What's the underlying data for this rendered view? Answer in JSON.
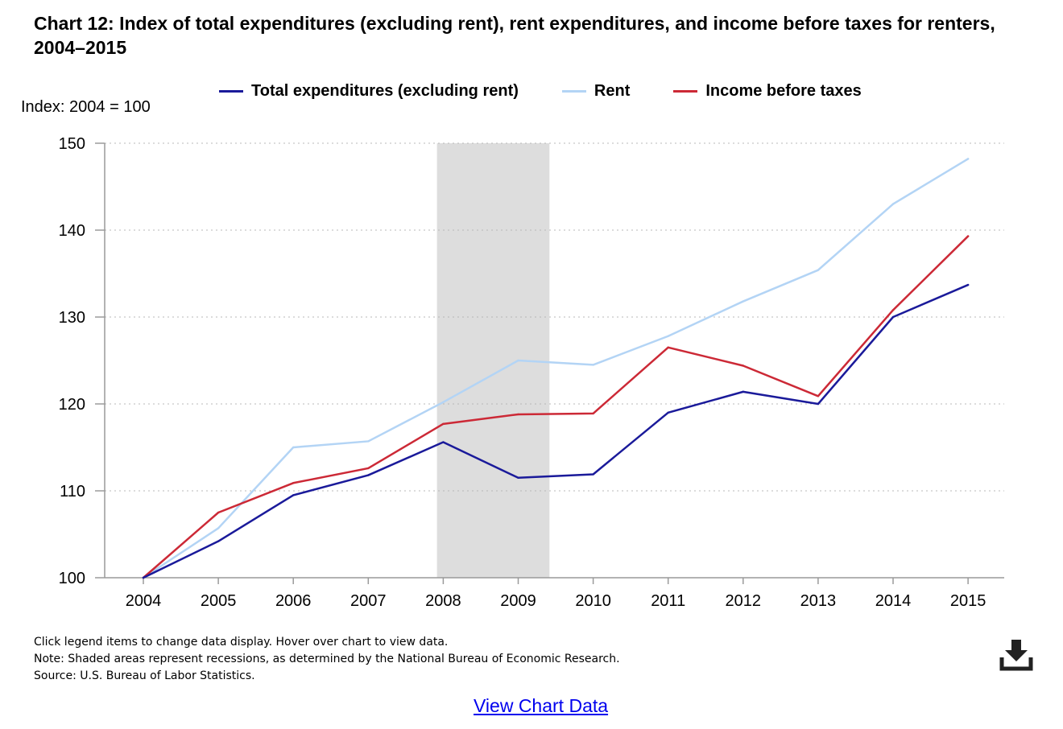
{
  "title": "Chart 12: Index of total expenditures (excluding rent), rent expenditures, and income before taxes for renters, 2004–2015",
  "y_unit_label": "Index: 2004 = 100",
  "legend": [
    {
      "label": "Total expenditures (excluding rent)",
      "color": "#1a1a9a"
    },
    {
      "label": "Rent",
      "color": "#b3d4f5"
    },
    {
      "label": "Income before taxes",
      "color": "#cc2936"
    }
  ],
  "notes": [
    "Click legend items to change data display. Hover over chart to view data.",
    "Note: Shaded areas represent recessions, as determined by the National Bureau of Economic Research.",
    "Source: U.S. Bureau of Labor Statistics."
  ],
  "download_icon": "download-icon",
  "view_data_label": "View Chart Data",
  "chart_data": {
    "type": "line",
    "categories": [
      "2004",
      "2005",
      "2006",
      "2007",
      "2008",
      "2009",
      "2010",
      "2011",
      "2012",
      "2013",
      "2014",
      "2015"
    ],
    "series": [
      {
        "name": "Total expenditures (excluding rent)",
        "color": "#1a1a9a",
        "values": [
          100,
          104.2,
          109.5,
          111.8,
          115.6,
          111.5,
          111.9,
          119,
          121.4,
          120,
          130,
          133.7
        ]
      },
      {
        "name": "Rent",
        "color": "#b3d4f5",
        "values": [
          100,
          105.7,
          115,
          115.7,
          120.2,
          125,
          124.5,
          127.8,
          131.8,
          135.4,
          143,
          148.2
        ]
      },
      {
        "name": "Income before taxes",
        "color": "#cc2936",
        "values": [
          100,
          107.5,
          110.9,
          112.6,
          117.7,
          118.8,
          118.9,
          126.5,
          124.4,
          120.9,
          130.8,
          139.3
        ]
      }
    ],
    "ylim": [
      100,
      150
    ],
    "yticks": [
      "100",
      "110",
      "120",
      "130",
      "140",
      "150"
    ],
    "recession": {
      "start": "2007-12",
      "end": "2009-06",
      "color": "#dddddd"
    },
    "grid": true,
    "legend_position": "top"
  }
}
